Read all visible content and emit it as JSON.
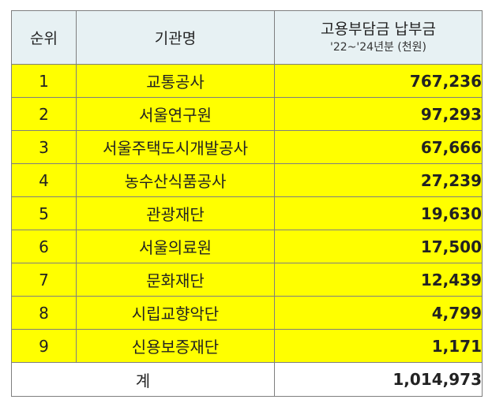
{
  "headers": {
    "rank": "순위",
    "org": "기관명",
    "amount_title": "고용부담금 납부금",
    "amount_sub": "'22~'24년분 (천원)"
  },
  "rows": [
    {
      "rank": "1",
      "org": "교통공사",
      "amount": "767,236",
      "highlight": true
    },
    {
      "rank": "2",
      "org": "서울연구원",
      "amount": "97,293"
    },
    {
      "rank": "3",
      "org": "서울주택도시개발공사",
      "amount": "67,666"
    },
    {
      "rank": "4",
      "org": "농수산식품공사",
      "amount": "27,239"
    },
    {
      "rank": "5",
      "org": "관광재단",
      "amount": "19,630"
    },
    {
      "rank": "6",
      "org": "서울의료원",
      "amount": "17,500"
    },
    {
      "rank": "7",
      "org": "문화재단",
      "amount": "12,439"
    },
    {
      "rank": "8",
      "org": "시립교향악단",
      "amount": "4,799"
    },
    {
      "rank": "9",
      "org": "신용보증재단",
      "amount": "1,171"
    }
  ],
  "total": {
    "label": "계",
    "amount": "1,014,973"
  },
  "colors": {
    "highlight": "#ffff00",
    "header_bg": "#e7f1f3",
    "border": "#7f7f7f"
  }
}
